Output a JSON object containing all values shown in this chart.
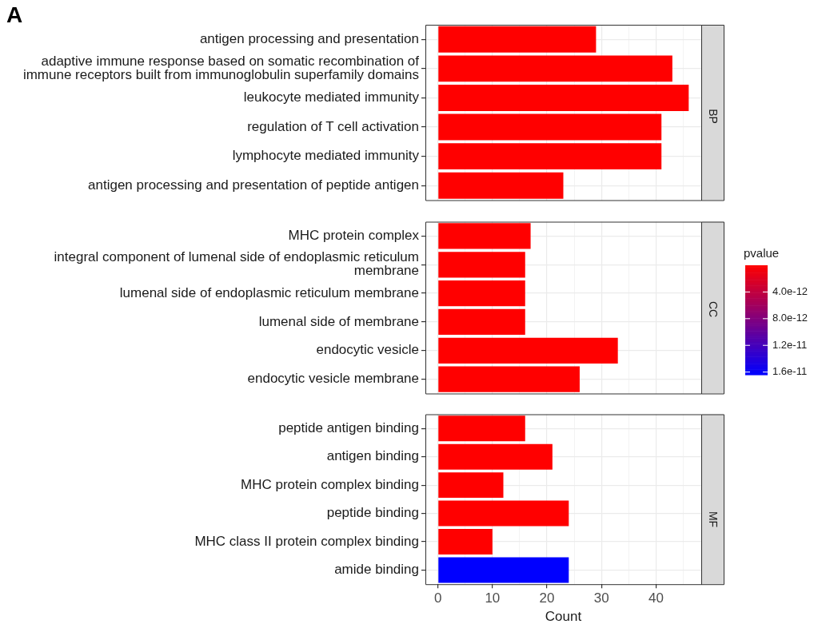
{
  "chart_data": [
    {
      "type": "bar",
      "orientation": "horizontal",
      "title": "BP",
      "annotations": [
        "A"
      ],
      "categories": [
        "antigen processing and presentation",
        "adaptive immune response based on somatic recombination of immune receptors built from immunoglobulin superfamily domains",
        "leukocyte mediated immunity",
        "regulation of T cell activation",
        "lymphocyte mediated immunity",
        "antigen processing and presentation of peptide antigen"
      ],
      "values": [
        29,
        43,
        46,
        41,
        41,
        23
      ],
      "colors": [
        "#ff0000",
        "#ff0000",
        "#ff0000",
        "#ff0000",
        "#ff0000",
        "#ff0000"
      ],
      "xlim": [
        -2.3,
        48.3
      ],
      "xticks": [
        0,
        {
          "value": 5,
          "label": null
        },
        10,
        {
          "value": 15,
          "label": null
        },
        20,
        {
          "value": 25,
          "label": null
        },
        30,
        {
          "value": 35,
          "label": null
        },
        40,
        {
          "value": 45,
          "label": null
        }
      ],
      "grid": true,
      "legend": false,
      "tick_labels": "y"
    },
    {
      "type": "bar",
      "orientation": "horizontal",
      "title": "CC",
      "categories": [
        "MHC protein complex",
        "integral component of lumenal side of endoplasmic reticulum membrane",
        "lumenal side of endoplasmic reticulum membrane",
        "lumenal side of membrane",
        "endocytic vesicle",
        "endocytic vesicle membrane"
      ],
      "values": [
        17,
        16,
        16,
        16,
        33,
        26
      ],
      "colors": [
        "#ff0000",
        "#ff0000",
        "#ff0000",
        "#ff0000",
        "#ff0000",
        "#ff0000"
      ],
      "xlim": [
        -2.3,
        48.3
      ],
      "xticks": [
        0,
        {
          "value": 5,
          "label": null
        },
        10,
        {
          "value": 15,
          "label": null
        },
        20,
        {
          "value": 25,
          "label": null
        },
        30,
        {
          "value": 35,
          "label": null
        },
        40,
        {
          "value": 45,
          "label": null
        }
      ],
      "grid": true,
      "legend": false,
      "tick_labels": "y",
      "clabel": "pvalue",
      "clim": [
        0,
        1.64e-11
      ],
      "cticks": [
        {
          "value": 4e-12,
          "label": "4.0e-12"
        },
        {
          "value": 8e-12,
          "label": "8.0e-12"
        },
        {
          "value": 1.2e-11,
          "label": "1.2e-11"
        },
        {
          "value": 1.6e-11,
          "label": "1.6e-11"
        }
      ]
    },
    {
      "type": "bar",
      "orientation": "horizontal",
      "title": "MF",
      "xlabel": "Count",
      "categories": [
        "peptide antigen binding",
        "antigen binding",
        "MHC protein complex binding",
        "peptide binding",
        "MHC class II protein complex binding",
        "amide binding"
      ],
      "values": [
        16,
        21,
        12,
        24,
        10,
        24
      ],
      "colors": [
        "#ff0000",
        "#ff0000",
        "#ff0000",
        "#ff0000",
        "#ff0000",
        "#0000ff"
      ],
      "xlim": [
        -2.3,
        48.3
      ],
      "xticks": [
        0,
        {
          "value": 5,
          "label": null
        },
        10,
        {
          "value": 15,
          "label": null
        },
        20,
        {
          "value": 25,
          "label": null
        },
        30,
        {
          "value": 35,
          "label": null
        },
        40,
        {
          "value": 45,
          "label": null
        }
      ],
      "grid": true,
      "legend": false
    }
  ]
}
